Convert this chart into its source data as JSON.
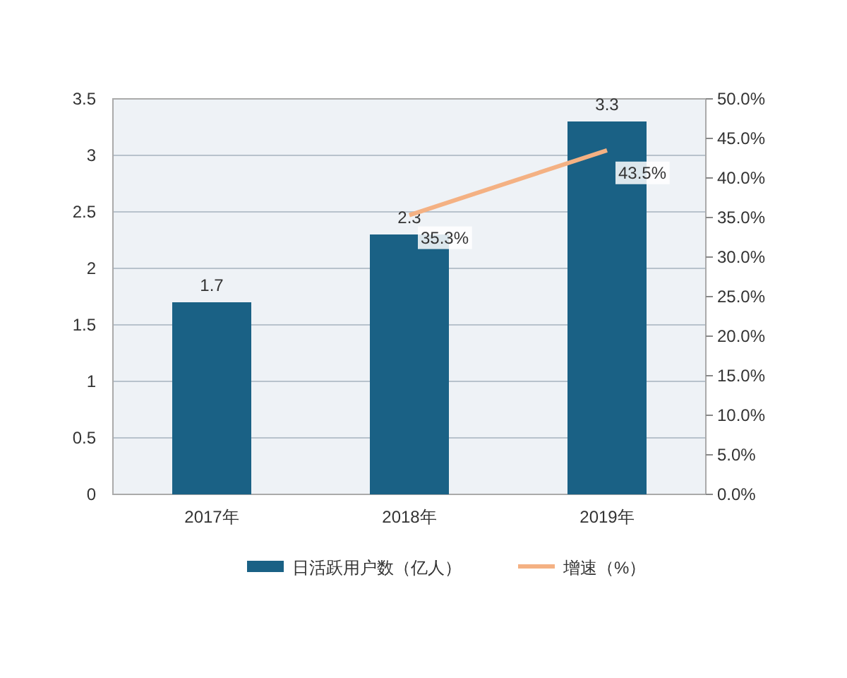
{
  "chart_data": {
    "type": "bar",
    "categories": [
      "2017年",
      "2018年",
      "2019年"
    ],
    "series": [
      {
        "name": "日活跃用户数（亿人）",
        "color": "#1a6185",
        "values": [
          1.7,
          2.3,
          3.3
        ],
        "value_labels": [
          "1.7",
          "2.3",
          "3.3"
        ]
      },
      {
        "name": "增速（%）",
        "type": "line",
        "axis": "y2",
        "color": "#f4b183",
        "values": [
          null,
          35.3,
          43.5
        ],
        "value_labels": [
          null,
          "35.3%",
          "43.5%"
        ]
      }
    ],
    "ylim": [
      0,
      3.5
    ],
    "yticks": [
      0,
      0.5,
      1,
      1.5,
      2,
      2.5,
      3,
      3.5
    ],
    "y2lim": [
      0,
      50
    ],
    "y2ticks": [
      {
        "value": 0,
        "label": "0.0%"
      },
      {
        "value": 5,
        "label": "5.0%"
      },
      {
        "value": 10,
        "label": "10.0%"
      },
      {
        "value": 15,
        "label": "15.0%"
      },
      {
        "value": 20,
        "label": "20.0%"
      },
      {
        "value": 25,
        "label": "25.0%"
      },
      {
        "value": 30,
        "label": "30.0%"
      },
      {
        "value": 35,
        "label": "35.0%"
      },
      {
        "value": 40,
        "label": "40.0%"
      },
      {
        "value": 45,
        "label": "45.0%"
      },
      {
        "value": 50,
        "label": "50.0%"
      }
    ],
    "grid": "y",
    "legend": "bottom",
    "marker": "none",
    "line_style": "solid"
  }
}
